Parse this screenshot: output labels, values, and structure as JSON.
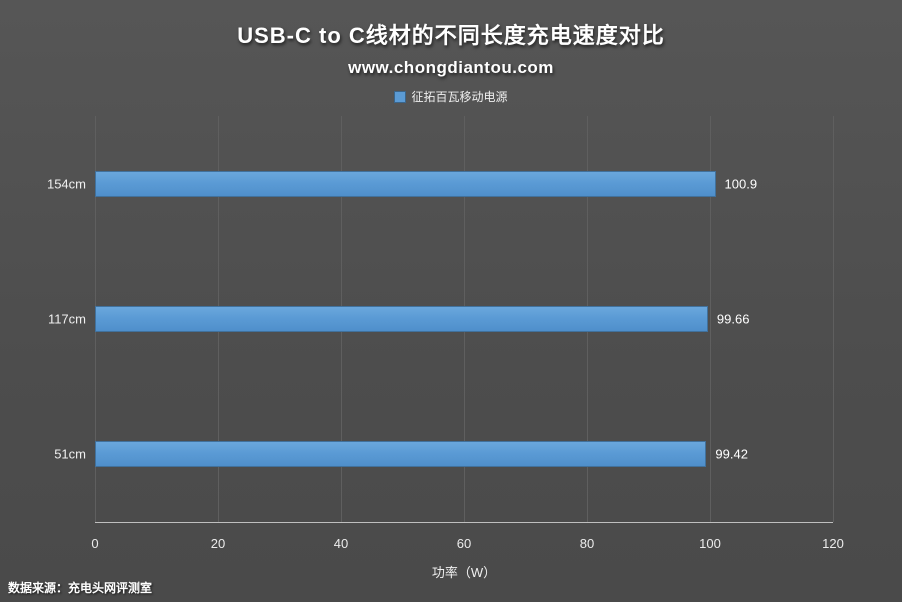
{
  "header": {
    "title": "USB-C to C线材的不同长度充电速度对比",
    "subtitle": "www.chongdiantou.com"
  },
  "legend": {
    "label": "征拓百瓦移动电源",
    "color": "#5b9bd5"
  },
  "chart_data": {
    "type": "bar",
    "orientation": "horizontal",
    "title": "USB-C to C线材的不同长度充电速度对比",
    "subtitle": "www.chongdiantou.com",
    "categories": [
      "154cm",
      "117cm",
      "51cm"
    ],
    "series": [
      {
        "name": "征拓百瓦移动电源",
        "values": [
          100.9,
          99.66,
          99.42
        ],
        "value_labels": [
          "100.9",
          "99.66",
          "99.42"
        ],
        "color": "#5b9bd5",
        "border_color": "#41719c"
      }
    ],
    "xlabel": "功率（W）",
    "ylabel": "",
    "xlim": [
      0,
      120
    ],
    "xticks": [
      0,
      20,
      40,
      60,
      80,
      100,
      120
    ],
    "grid": true,
    "legend_position": "top"
  },
  "footer": {
    "source": "数据来源：充电头网评测室"
  },
  "colors": {
    "background": "#4f4f4f",
    "bar": "#5b9bd5",
    "bar_border": "#41719c",
    "gridline": "#5f5f5f",
    "axis_line": "#bfbfbf",
    "text": "#ffffff"
  }
}
